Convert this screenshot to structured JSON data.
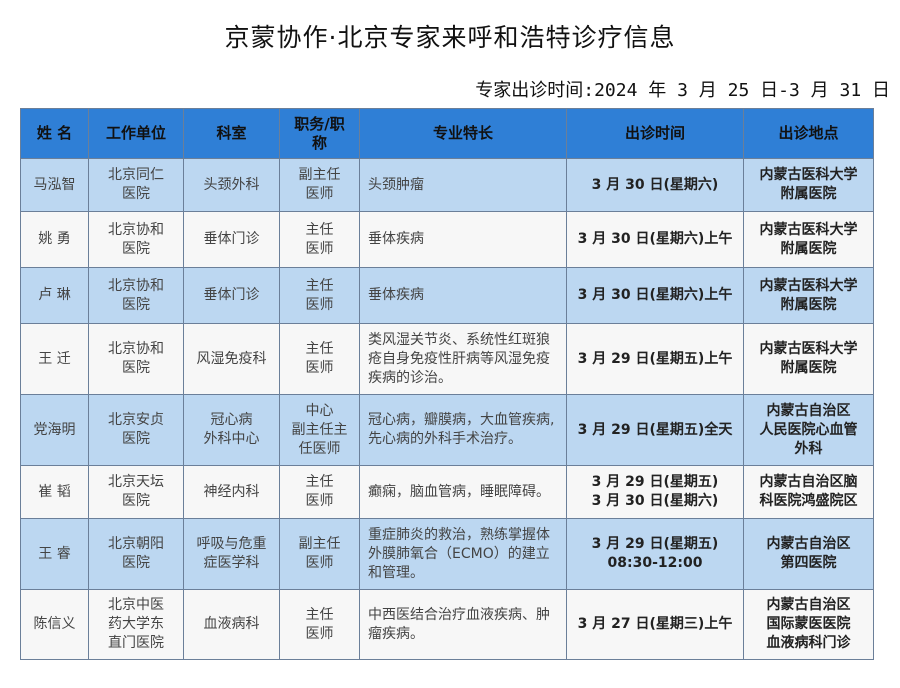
{
  "title": "京蒙协作·北京专家来呼和浩特诊疗信息",
  "subtitle": "专家出诊时间:2024 年 3 月 25 日-3 月 31 日",
  "table": {
    "headers": [
      "姓  名",
      "工作单位",
      "科室",
      "职务/职\n称",
      "专业特长",
      "出诊时间",
      "出诊地点"
    ],
    "rows": [
      [
        "马泓智",
        "北京同仁\n医院",
        "头颈外科",
        "副主任\n医师",
        "头颈肿瘤",
        "3 月 30 日(星期六)",
        "内蒙古医科大学\n附属医院"
      ],
      [
        "姚  勇",
        "北京协和\n医院",
        "垂体门诊",
        "主任\n医师",
        "垂体疾病",
        "3 月 30 日(星期六)上午",
        "内蒙古医科大学\n附属医院"
      ],
      [
        "卢  琳",
        "北京协和\n医院",
        "垂体门诊",
        "主任\n医师",
        "垂体疾病",
        "3 月 30 日(星期六)上午",
        "内蒙古医科大学\n附属医院"
      ],
      [
        "王  迁",
        "北京协和\n医院",
        "风湿免疫科",
        "主任\n医师",
        "类风湿关节炎、系统性红斑狼疮自身免疫性肝病等风湿免疫疾病的诊治。",
        "3 月 29 日(星期五)上午",
        "内蒙古医科大学\n附属医院"
      ],
      [
        "党海明",
        "北京安贞\n医院",
        "冠心病\n外科中心",
        "中心\n副主任主\n任医师",
        "冠心病，瓣膜病，大血管疾病,先心病的外科手术治疗。",
        "3 月 29 日(星期五)全天",
        "内蒙古自治区\n人民医院心血管\n外科"
      ],
      [
        "崔  韬",
        "北京天坛\n医院",
        "神经内科",
        "主任\n医师",
        "癫痫，脑血管病，睡眠障碍。",
        "3 月 29 日(星期五)\n3 月 30 日(星期六)",
        "内蒙古自治区脑\n科医院鸿盛院区"
      ],
      [
        "王  睿",
        "北京朝阳\n医院",
        "呼吸与危重\n症医学科",
        "副主任\n医师",
        "重症肺炎的救治，熟练掌握体外膜肺氧合（ECMO）的建立和管理。",
        "3 月 29 日(星期五)\n08:30-12:00",
        "内蒙古自治区\n第四医院"
      ],
      [
        "陈信义",
        "北京中医\n药大学东\n直门医院",
        "血液病科",
        "主任\n医师",
        "中西医结合治疗血液疾病、肿瘤疾病。",
        "3 月 27 日(星期三)上午",
        "内蒙古自治区\n国际蒙医医院\n血液病科门诊"
      ]
    ]
  },
  "colors": {
    "header": "#2f7fd6",
    "row_blue": "#bcd7f1",
    "row_white": "#f7f7f7"
  }
}
